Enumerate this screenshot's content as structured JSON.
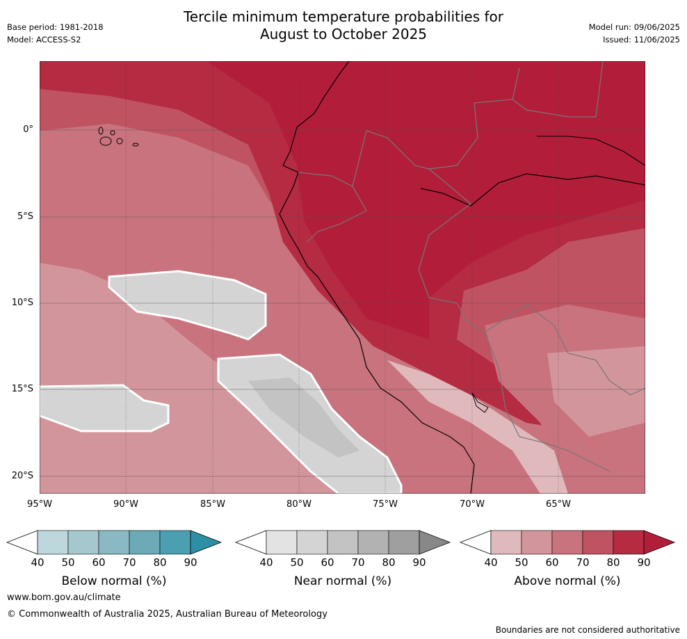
{
  "header": {
    "title_line1": "Tercile minimum temperature probabilities for",
    "title_line2": "August to October 2025",
    "base_period": "Base period: 1981-2018",
    "model": "Model: ACCESS-S2",
    "model_run": "Model run: 09/06/2025",
    "issued": "Issued: 11/06/2025"
  },
  "map": {
    "lat_labels": [
      "0°",
      "5°S",
      "10°S",
      "15°S",
      "20°S"
    ],
    "lon_labels": [
      "95°W",
      "90°W",
      "85°W",
      "80°W",
      "75°W",
      "70°W",
      "65°W"
    ]
  },
  "legends": [
    {
      "title": "Below normal (%)",
      "ticks": [
        "40",
        "50",
        "60",
        "70",
        "80",
        "90"
      ],
      "colors": [
        "#bdd7dc",
        "#a5c8cf",
        "#8ab8c3",
        "#6caab7",
        "#4aa0b1",
        "#2d8fa3"
      ]
    },
    {
      "title": "Near normal (%)",
      "ticks": [
        "40",
        "50",
        "60",
        "70",
        "80",
        "90"
      ],
      "colors": [
        "#e3e3e3",
        "#d4d4d4",
        "#c3c3c3",
        "#b2b2b2",
        "#9f9f9f",
        "#888888"
      ]
    },
    {
      "title": "Above normal (%)",
      "ticks": [
        "40",
        "50",
        "60",
        "70",
        "80",
        "90"
      ],
      "colors": [
        "#e0b9bd",
        "#d3959c",
        "#c8737d",
        "#bf5361",
        "#b42b42",
        "#b21e39"
      ]
    }
  ],
  "footer": {
    "website": "www.bom.gov.au/climate",
    "copyright": "© Commonwealth of Australia 2025, Australian Bureau of Meteorology",
    "disclaimer": "Boundaries are not considered authoritative"
  }
}
